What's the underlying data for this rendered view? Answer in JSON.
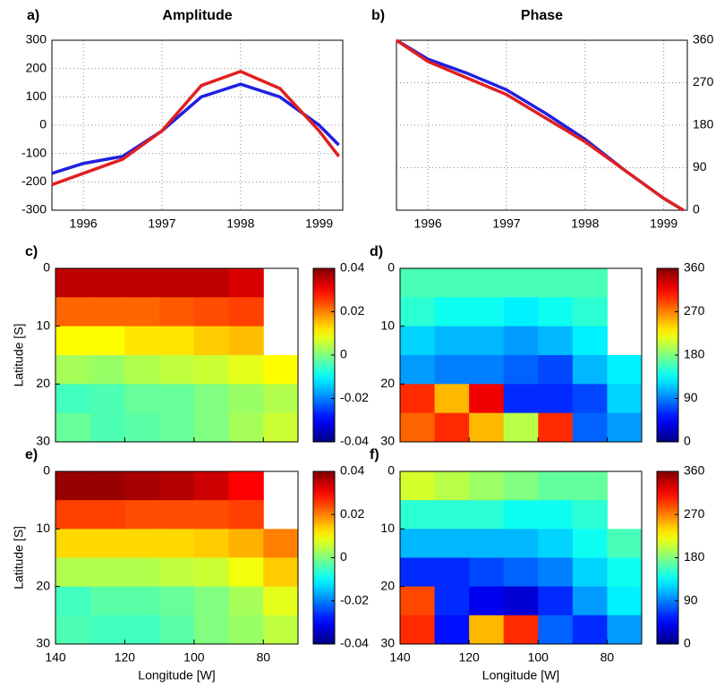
{
  "chart_data": [
    {
      "type": "line",
      "panel": "a)",
      "title": "Amplitude",
      "x": [
        1995.6,
        1996,
        1996.5,
        1997,
        1997.5,
        1998,
        1998.5,
        1999,
        1999.25
      ],
      "series": [
        {
          "color": "#2020e0",
          "values": [
            -170,
            -135,
            -110,
            -20,
            100,
            145,
            100,
            0,
            -70
          ]
        },
        {
          "color": "#e02020",
          "values": [
            -210,
            -170,
            -120,
            -20,
            140,
            190,
            130,
            -20,
            -110
          ]
        }
      ],
      "xlim": [
        1995.6,
        1999.3
      ],
      "xticks": [
        1996,
        1997,
        1998,
        1999
      ],
      "ylim": [
        -300,
        300
      ],
      "yticks": [
        -300,
        -200,
        -100,
        0,
        100,
        200,
        300
      ],
      "grid": true,
      "y_axis_side": "left"
    },
    {
      "type": "line",
      "panel": "b)",
      "title": "Phase",
      "x": [
        1995.6,
        1996,
        1996.5,
        1997,
        1997.5,
        1998,
        1998.5,
        1999,
        1999.25
      ],
      "series": [
        {
          "color": "#2020e0",
          "values": [
            360,
            320,
            290,
            255,
            205,
            150,
            85,
            25,
            0
          ]
        },
        {
          "color": "#e02020",
          "values": [
            360,
            315,
            280,
            245,
            195,
            145,
            85,
            25,
            0
          ]
        }
      ],
      "xlim": [
        1995.6,
        1999.3
      ],
      "xticks": [
        1996,
        1997,
        1998,
        1999
      ],
      "ylim": [
        0,
        360
      ],
      "yticks": [
        0,
        90,
        180,
        270,
        360
      ],
      "grid": true,
      "y_axis_side": "right"
    },
    {
      "type": "heatmap",
      "panel": "c)",
      "y_label": "Latitude [S]",
      "x": [
        135,
        125,
        115,
        105,
        95,
        85,
        75
      ],
      "y": [
        2.5,
        7.5,
        12.5,
        17.5,
        22.5,
        27.5
      ],
      "z": [
        [
          0.035,
          0.035,
          0.035,
          0.035,
          0.035,
          0.033,
          null
        ],
        [
          0.022,
          0.022,
          0.022,
          0.023,
          0.024,
          0.025,
          null
        ],
        [
          0.01,
          0.01,
          0.012,
          0.012,
          0.014,
          0.015,
          null
        ],
        [
          0.003,
          0.002,
          0.004,
          0.005,
          0.006,
          0.008,
          0.01
        ],
        [
          -0.005,
          -0.004,
          -0.002,
          -0.002,
          0,
          0.002,
          0.004
        ],
        [
          -0.002,
          -0.004,
          -0.003,
          -0.002,
          0,
          0.003,
          0.006
        ]
      ],
      "xlim": [
        140,
        70
      ],
      "xticks": [
        140,
        120,
        100,
        80
      ],
      "ylim": [
        0,
        30
      ],
      "yticks": [
        0,
        10,
        20,
        30
      ],
      "y_reversed": true,
      "colormap": "jet",
      "clim": [
        -0.04,
        0.04
      ],
      "cticks": [
        -0.04,
        -0.02,
        0,
        0.02,
        0.04
      ]
    },
    {
      "type": "heatmap",
      "panel": "d)",
      "x": [
        135,
        125,
        115,
        105,
        95,
        85,
        75
      ],
      "y": [
        2.5,
        7.5,
        12.5,
        17.5,
        22.5,
        27.5
      ],
      "z": [
        [
          160,
          160,
          160,
          160,
          160,
          160,
          null
        ],
        [
          150,
          140,
          140,
          130,
          140,
          150,
          null
        ],
        [
          120,
          110,
          110,
          100,
          110,
          130,
          null
        ],
        [
          100,
          90,
          90,
          80,
          70,
          110,
          130
        ],
        [
          300,
          250,
          320,
          60,
          60,
          70,
          120
        ],
        [
          280,
          300,
          250,
          200,
          300,
          80,
          100
        ]
      ],
      "xlim": [
        140,
        70
      ],
      "xticks": [
        140,
        120,
        100,
        80
      ],
      "ylim": [
        0,
        30
      ],
      "yticks": [
        0,
        10,
        20,
        30
      ],
      "y_reversed": true,
      "colormap": "jet",
      "clim": [
        0,
        360
      ],
      "cticks": [
        0,
        90,
        180,
        270,
        360
      ]
    },
    {
      "type": "heatmap",
      "panel": "e)",
      "y_label": "Latitude [S]",
      "x_label": "Longitude [W]",
      "x": [
        135,
        125,
        115,
        105,
        95,
        85,
        75
      ],
      "y": [
        2.5,
        7.5,
        12.5,
        17.5,
        22.5,
        27.5
      ],
      "z": [
        [
          0.038,
          0.038,
          0.037,
          0.036,
          0.034,
          0.03,
          null
        ],
        [
          0.025,
          0.025,
          0.024,
          0.024,
          0.024,
          0.025,
          null
        ],
        [
          0.013,
          0.013,
          0.013,
          0.013,
          0.014,
          0.016,
          0.02
        ],
        [
          0.004,
          0.004,
          0.004,
          0.005,
          0.006,
          0.009,
          0.014
        ],
        [
          -0.005,
          -0.003,
          -0.003,
          -0.002,
          0,
          0.003,
          0.008
        ],
        [
          -0.004,
          -0.005,
          -0.005,
          -0.003,
          0,
          0.002,
          0.005
        ]
      ],
      "xlim": [
        140,
        70
      ],
      "xticks": [
        140,
        120,
        100,
        80
      ],
      "ylim": [
        0,
        30
      ],
      "yticks": [
        0,
        10,
        20,
        30
      ],
      "y_reversed": true,
      "colormap": "jet",
      "clim": [
        -0.04,
        0.04
      ],
      "cticks": [
        -0.04,
        -0.02,
        0,
        0.02,
        0.04
      ]
    },
    {
      "type": "heatmap",
      "panel": "f)",
      "x_label": "Longitude [W]",
      "x": [
        135,
        125,
        115,
        105,
        95,
        85,
        75
      ],
      "y": [
        2.5,
        7.5,
        12.5,
        17.5,
        22.5,
        27.5
      ],
      "z": [
        [
          210,
          200,
          190,
          180,
          170,
          170,
          null
        ],
        [
          150,
          150,
          150,
          140,
          140,
          150,
          null
        ],
        [
          110,
          110,
          110,
          110,
          120,
          140,
          160
        ],
        [
          60,
          60,
          70,
          80,
          90,
          120,
          140
        ],
        [
          290,
          60,
          40,
          30,
          60,
          100,
          130
        ],
        [
          300,
          50,
          250,
          300,
          80,
          60,
          100
        ]
      ],
      "xlim": [
        140,
        70
      ],
      "xticks": [
        140,
        120,
        100,
        80
      ],
      "ylim": [
        0,
        30
      ],
      "yticks": [
        0,
        10,
        20,
        30
      ],
      "y_reversed": true,
      "colormap": "jet",
      "clim": [
        0,
        360
      ],
      "cticks": [
        0,
        90,
        180,
        270,
        360
      ]
    }
  ]
}
